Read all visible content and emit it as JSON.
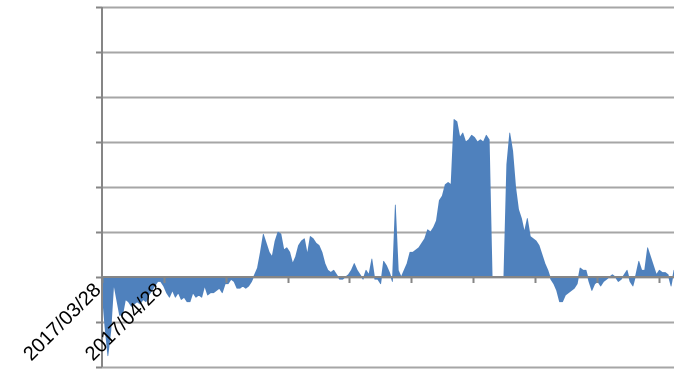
{
  "chart_data": {
    "type": "area",
    "title": "",
    "xlabel": "",
    "ylabel": "",
    "x_tick_labels": [
      "2017/03/28",
      "2017/04/28"
    ],
    "ylim": [
      -2,
      6
    ],
    "grid": true,
    "legend": "none",
    "colors": {
      "area": "#4f81bd",
      "grid": "#a6a6a6",
      "axis": "#868686"
    },
    "series": [
      {
        "values": [
          -0.3,
          -1.1,
          -1.75,
          -1.2,
          -0.15,
          -0.5,
          -0.85,
          -0.85,
          -0.5,
          -0.55,
          -0.65,
          -0.6,
          -0.55,
          -0.6,
          -0.5,
          -0.55,
          -0.4,
          -0.3,
          -0.2,
          -0.1,
          -0.1,
          -0.2,
          -0.35,
          -0.45,
          -0.3,
          -0.45,
          -0.35,
          -0.5,
          -0.45,
          -0.55,
          -0.55,
          -0.35,
          -0.45,
          -0.4,
          -0.45,
          -0.2,
          -0.4,
          -0.35,
          -0.35,
          -0.3,
          -0.25,
          -0.35,
          -0.15,
          -0.15,
          -0.05,
          -0.1,
          -0.25,
          -0.25,
          -0.2,
          -0.25,
          -0.2,
          -0.1,
          0.05,
          0.2,
          0.55,
          0.95,
          0.75,
          0.55,
          0.45,
          0.8,
          1.0,
          0.95,
          0.6,
          0.65,
          0.55,
          0.3,
          0.45,
          0.7,
          0.8,
          0.85,
          0.5,
          0.9,
          0.85,
          0.75,
          0.7,
          0.55,
          0.3,
          0.15,
          0.1,
          0.15,
          0.05,
          -0.05,
          -0.05,
          0.0,
          0.05,
          0.15,
          0.3,
          0.15,
          0.05,
          -0.05,
          0.15,
          0.05,
          0.4,
          -0.05,
          -0.05,
          -0.15,
          0.35,
          0.25,
          0.1,
          -0.1,
          1.6,
          0.15,
          0.0,
          0.15,
          0.3,
          0.55,
          0.55,
          0.6,
          0.65,
          0.75,
          0.85,
          1.05,
          1.0,
          1.1,
          1.25,
          1.7,
          1.8,
          2.05,
          2.1,
          2.05,
          3.5,
          3.45,
          3.1,
          3.2,
          3.0,
          3.05,
          3.15,
          3.1,
          3.0,
          3.05,
          3.0,
          3.15,
          3.05,
          0.0,
          0.0,
          0.0,
          0.0,
          0.0,
          2.5,
          3.2,
          2.8,
          2.0,
          1.5,
          1.3,
          1.0,
          1.3,
          0.9,
          0.85,
          0.8,
          0.7,
          0.5,
          0.3,
          0.15,
          -0.05,
          -0.15,
          -0.3,
          -0.55,
          -0.55,
          -0.4,
          -0.35,
          -0.3,
          -0.25,
          -0.15,
          0.2,
          0.15,
          0.15,
          -0.1,
          -0.3,
          -0.15,
          -0.1,
          -0.2,
          -0.1,
          -0.05,
          0.0,
          0.05,
          0.0,
          -0.1,
          -0.05,
          0.05,
          0.15,
          -0.1,
          -0.2,
          0.05,
          0.35,
          0.15,
          0.15,
          0.65,
          0.45,
          0.25,
          0.05,
          0.15,
          0.1,
          0.1,
          0.05,
          -0.2,
          0.15
        ]
      }
    ]
  }
}
